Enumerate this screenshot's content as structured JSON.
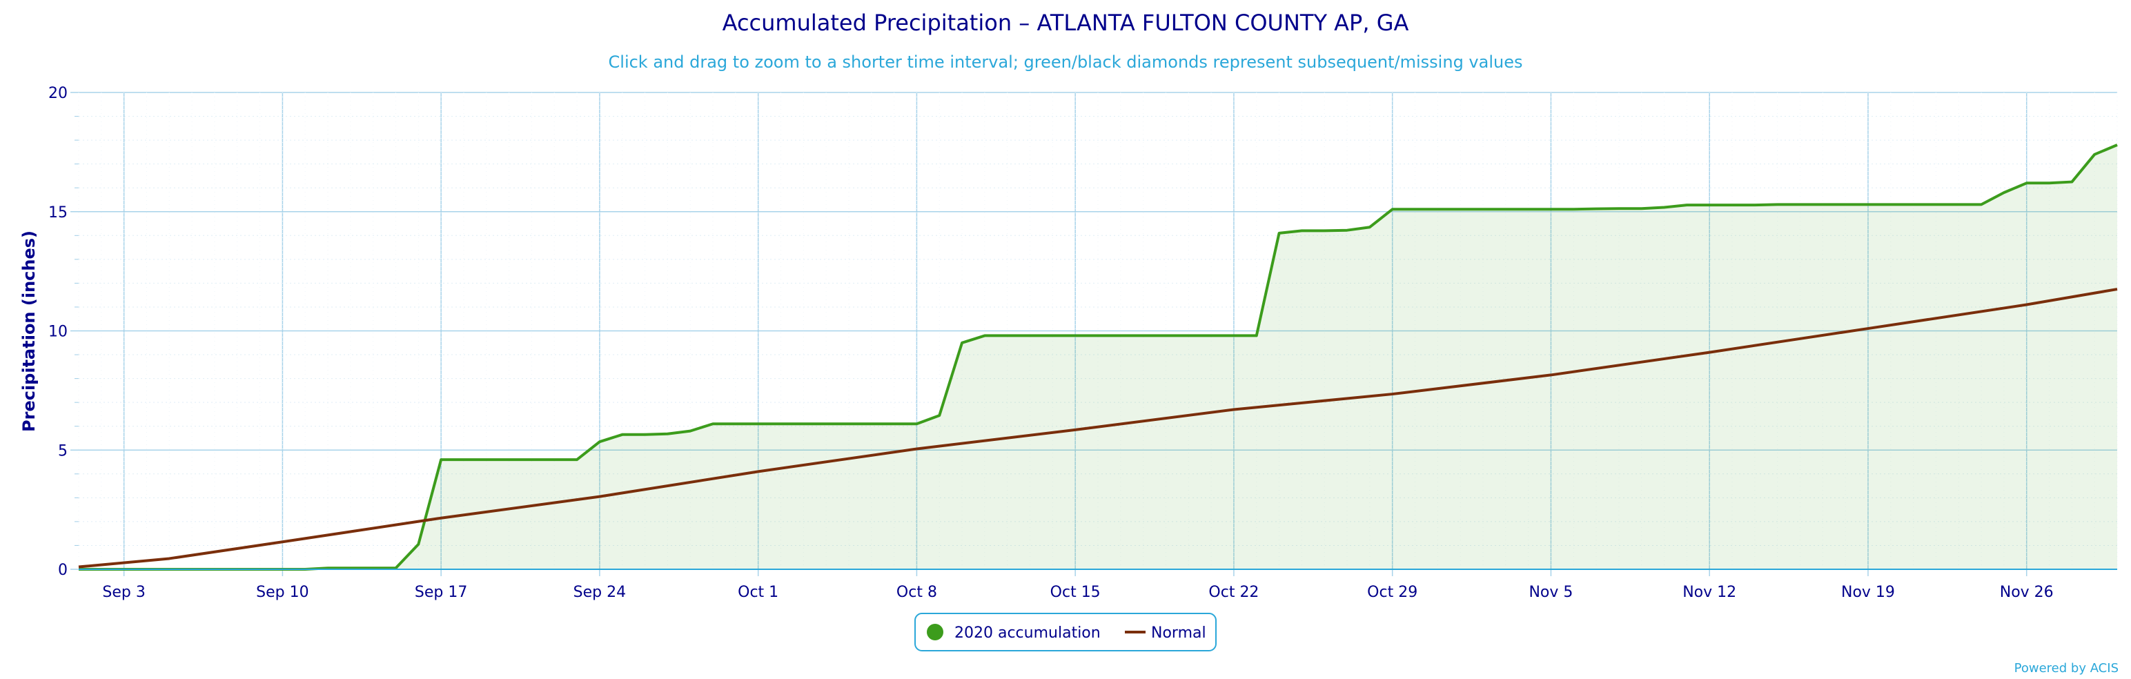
{
  "chart_data": {
    "type": "area",
    "title": "Accumulated Precipitation – ATLANTA FULTON COUNTY AP, GA",
    "subtitle": "Click and drag to zoom to a shorter time interval; green/black diamonds represent subsequent/missing values",
    "xlabel": "",
    "ylabel": "Precipitation (inches)",
    "ylim": [
      0,
      20
    ],
    "yticks": [
      "0",
      "5",
      "10",
      "15",
      "20"
    ],
    "x_range": [
      "2020-09-01",
      "2020-11-30"
    ],
    "x_ticks": [
      {
        "date": "2020-09-03",
        "label": "Sep 3"
      },
      {
        "date": "2020-09-10",
        "label": "Sep 10"
      },
      {
        "date": "2020-09-17",
        "label": "Sep 17"
      },
      {
        "date": "2020-09-24",
        "label": "Sep 24"
      },
      {
        "date": "2020-10-01",
        "label": "Oct 1"
      },
      {
        "date": "2020-10-08",
        "label": "Oct 8"
      },
      {
        "date": "2020-10-15",
        "label": "Oct 15"
      },
      {
        "date": "2020-10-22",
        "label": "Oct 22"
      },
      {
        "date": "2020-10-29",
        "label": "Oct 29"
      },
      {
        "date": "2020-11-05",
        "label": "Nov 5"
      },
      {
        "date": "2020-11-12",
        "label": "Nov 12"
      },
      {
        "date": "2020-11-19",
        "label": "Nov 19"
      },
      {
        "date": "2020-11-26",
        "label": "Nov 26"
      }
    ],
    "grid": true,
    "legend_position": "bottom-center",
    "series": [
      {
        "name": "2020 accumulation",
        "color": "#3c9c1c",
        "fill": "#3c9c1c",
        "points": [
          [
            "2020-09-01",
            0.0
          ],
          [
            "2020-09-02",
            0.0
          ],
          [
            "2020-09-03",
            0.0
          ],
          [
            "2020-09-04",
            0.0
          ],
          [
            "2020-09-05",
            0.0
          ],
          [
            "2020-09-06",
            0.0
          ],
          [
            "2020-09-07",
            0.0
          ],
          [
            "2020-09-08",
            0.0
          ],
          [
            "2020-09-09",
            0.0
          ],
          [
            "2020-09-10",
            0.0
          ],
          [
            "2020-09-11",
            0.0
          ],
          [
            "2020-09-12",
            0.05
          ],
          [
            "2020-09-13",
            0.05
          ],
          [
            "2020-09-14",
            0.05
          ],
          [
            "2020-09-15",
            0.05
          ],
          [
            "2020-09-16",
            1.05
          ],
          [
            "2020-09-17",
            4.6
          ],
          [
            "2020-09-18",
            4.6
          ],
          [
            "2020-09-19",
            4.6
          ],
          [
            "2020-09-20",
            4.6
          ],
          [
            "2020-09-21",
            4.6
          ],
          [
            "2020-09-22",
            4.6
          ],
          [
            "2020-09-23",
            4.6
          ],
          [
            "2020-09-24",
            5.35
          ],
          [
            "2020-09-25",
            5.65
          ],
          [
            "2020-09-26",
            5.65
          ],
          [
            "2020-09-27",
            5.68
          ],
          [
            "2020-09-28",
            5.8
          ],
          [
            "2020-09-29",
            6.1
          ],
          [
            "2020-09-30",
            6.1
          ],
          [
            "2020-10-01",
            6.1
          ],
          [
            "2020-10-02",
            6.1
          ],
          [
            "2020-10-03",
            6.1
          ],
          [
            "2020-10-04",
            6.1
          ],
          [
            "2020-10-05",
            6.1
          ],
          [
            "2020-10-06",
            6.1
          ],
          [
            "2020-10-07",
            6.1
          ],
          [
            "2020-10-08",
            6.1
          ],
          [
            "2020-10-09",
            6.45
          ],
          [
            "2020-10-10",
            9.5
          ],
          [
            "2020-10-11",
            9.8
          ],
          [
            "2020-10-12",
            9.8
          ],
          [
            "2020-10-13",
            9.8
          ],
          [
            "2020-10-14",
            9.8
          ],
          [
            "2020-10-15",
            9.8
          ],
          [
            "2020-10-16",
            9.8
          ],
          [
            "2020-10-17",
            9.8
          ],
          [
            "2020-10-18",
            9.8
          ],
          [
            "2020-10-19",
            9.8
          ],
          [
            "2020-10-20",
            9.8
          ],
          [
            "2020-10-21",
            9.8
          ],
          [
            "2020-10-22",
            9.8
          ],
          [
            "2020-10-23",
            9.8
          ],
          [
            "2020-10-24",
            14.1
          ],
          [
            "2020-10-25",
            14.2
          ],
          [
            "2020-10-26",
            14.2
          ],
          [
            "2020-10-27",
            14.22
          ],
          [
            "2020-10-28",
            14.35
          ],
          [
            "2020-10-29",
            15.1
          ],
          [
            "2020-10-30",
            15.1
          ],
          [
            "2020-10-31",
            15.1
          ],
          [
            "2020-11-01",
            15.1
          ],
          [
            "2020-11-02",
            15.1
          ],
          [
            "2020-11-03",
            15.1
          ],
          [
            "2020-11-04",
            15.1
          ],
          [
            "2020-11-05",
            15.1
          ],
          [
            "2020-11-06",
            15.1
          ],
          [
            "2020-11-07",
            15.12
          ],
          [
            "2020-11-08",
            15.13
          ],
          [
            "2020-11-09",
            15.13
          ],
          [
            "2020-11-10",
            15.18
          ],
          [
            "2020-11-11",
            15.28
          ],
          [
            "2020-11-12",
            15.28
          ],
          [
            "2020-11-13",
            15.28
          ],
          [
            "2020-11-14",
            15.28
          ],
          [
            "2020-11-15",
            15.3
          ],
          [
            "2020-11-16",
            15.3
          ],
          [
            "2020-11-17",
            15.3
          ],
          [
            "2020-11-18",
            15.3
          ],
          [
            "2020-11-19",
            15.3
          ],
          [
            "2020-11-20",
            15.3
          ],
          [
            "2020-11-21",
            15.3
          ],
          [
            "2020-11-22",
            15.3
          ],
          [
            "2020-11-23",
            15.3
          ],
          [
            "2020-11-24",
            15.3
          ],
          [
            "2020-11-25",
            15.8
          ],
          [
            "2020-11-26",
            16.2
          ],
          [
            "2020-11-27",
            16.2
          ],
          [
            "2020-11-28",
            16.25
          ],
          [
            "2020-11-29",
            17.4
          ],
          [
            "2020-11-30",
            17.8
          ]
        ]
      },
      {
        "name": "Normal",
        "color": "#7a2e0b",
        "points": [
          [
            "2020-09-01",
            0.1
          ],
          [
            "2020-09-05",
            0.45
          ],
          [
            "2020-09-10",
            1.15
          ],
          [
            "2020-09-17",
            2.15
          ],
          [
            "2020-09-24",
            3.05
          ],
          [
            "2020-10-01",
            4.1
          ],
          [
            "2020-10-08",
            5.05
          ],
          [
            "2020-10-15",
            5.85
          ],
          [
            "2020-10-22",
            6.7
          ],
          [
            "2020-10-29",
            7.35
          ],
          [
            "2020-11-05",
            8.15
          ],
          [
            "2020-11-12",
            9.1
          ],
          [
            "2020-11-19",
            10.1
          ],
          [
            "2020-11-26",
            11.1
          ],
          [
            "2020-11-30",
            11.75
          ]
        ]
      }
    ],
    "credit": "Powered by ACIS"
  }
}
